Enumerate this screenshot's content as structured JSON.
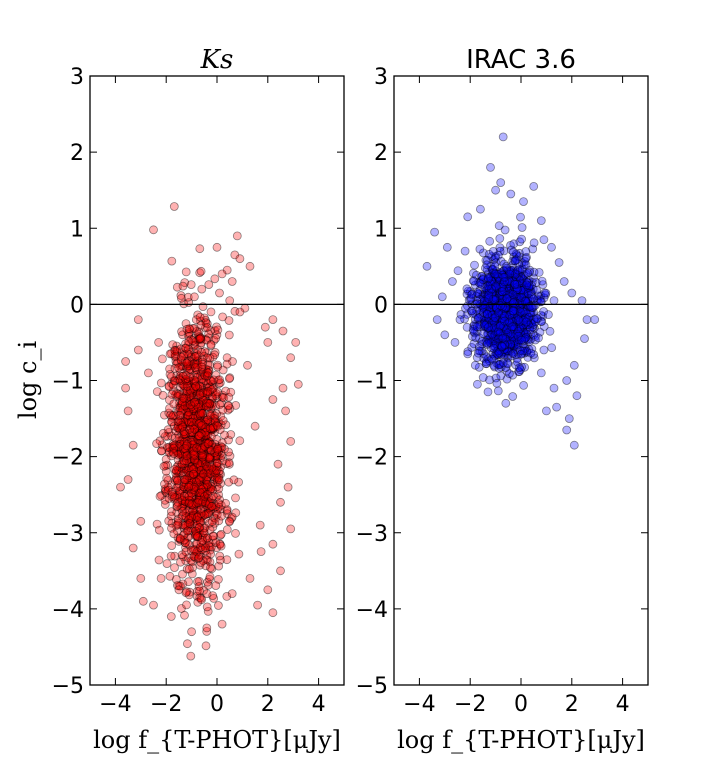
{
  "chart_data": [
    {
      "type": "scatter",
      "title": "Ks",
      "title_style": "italic",
      "xlabel": "log f_{T-PHOT}[μJy]",
      "ylabel": "log c_i",
      "xlim": [
        -5,
        5
      ],
      "ylim": [
        -5,
        3
      ],
      "xticks": [
        -4,
        -2,
        0,
        2,
        4
      ],
      "yticks": [
        -5,
        -4,
        -3,
        -2,
        -1,
        0,
        1,
        2,
        3
      ],
      "xtick_labels": [
        "−4",
        "−2",
        "0",
        "2",
        "4"
      ],
      "ytick_labels": [
        "−5",
        "−4",
        "−3",
        "−2",
        "−1",
        "0",
        "1",
        "2",
        "3"
      ],
      "reference_line_y": 0,
      "grid": false,
      "marker_color": "#ff0000",
      "marker_alpha": 0.3,
      "cloud": {
        "n": 1500,
        "x_center": -0.8,
        "x_sd": 0.55,
        "y_center": -1.9,
        "y_sd": 0.85,
        "seed": 11
      },
      "points": [
        [
          0.0,
          0.75
        ],
        [
          0.8,
          0.9
        ],
        [
          0.7,
          0.65
        ],
        [
          0.9,
          0.6
        ],
        [
          1.3,
          0.5
        ],
        [
          0.4,
          0.45
        ],
        [
          0.2,
          0.4
        ],
        [
          0.6,
          0.3
        ],
        [
          -0.6,
          0.2
        ],
        [
          -1.4,
          0.08
        ],
        [
          0.1,
          0.15
        ],
        [
          0.5,
          0.05
        ],
        [
          1.1,
          -0.05
        ],
        [
          2.2,
          -0.2
        ],
        [
          2.6,
          -0.35
        ],
        [
          1.9,
          -0.3
        ],
        [
          2.0,
          -0.5
        ],
        [
          2.9,
          -0.7
        ],
        [
          3.1,
          -0.5
        ],
        [
          3.2,
          -1.05
        ],
        [
          2.6,
          -1.1
        ],
        [
          2.2,
          -1.25
        ],
        [
          2.7,
          -1.4
        ],
        [
          2.9,
          -1.8
        ],
        [
          2.4,
          -2.1
        ],
        [
          2.8,
          -2.4
        ],
        [
          2.5,
          -2.6
        ],
        [
          2.9,
          -2.95
        ],
        [
          2.2,
          -3.15
        ],
        [
          2.5,
          -3.5
        ],
        [
          2.0,
          -3.75
        ],
        [
          2.2,
          -4.05
        ],
        [
          1.3,
          -3.6
        ],
        [
          1.6,
          -3.95
        ],
        [
          0.2,
          -4.2
        ],
        [
          -0.4,
          -4.25
        ],
        [
          -1.0,
          -4.3
        ],
        [
          -1.8,
          -4.1
        ],
        [
          -2.5,
          -3.95
        ],
        [
          -3.0,
          -3.6
        ],
        [
          -3.5,
          -2.3
        ],
        [
          -3.8,
          -2.4
        ],
        [
          -3.3,
          -1.85
        ],
        [
          -3.5,
          -1.4
        ],
        [
          -3.6,
          -1.1
        ],
        [
          -3.6,
          -0.75
        ],
        [
          -3.1,
          -0.6
        ],
        [
          -3.1,
          -0.2
        ],
        [
          -2.7,
          -0.9
        ],
        [
          -2.3,
          -0.5
        ],
        [
          -3.0,
          -2.85
        ],
        [
          -3.3,
          -3.2
        ],
        [
          -2.2,
          -3.6
        ],
        [
          -2.9,
          -3.9
        ],
        [
          -1.5,
          -3.75
        ],
        [
          0.6,
          -3.8
        ],
        [
          1.7,
          -2.9
        ],
        [
          1.5,
          -1.6
        ],
        [
          1.2,
          -0.8
        ],
        [
          0.9,
          -0.1
        ]
      ]
    },
    {
      "type": "scatter",
      "title": "IRAC 3.6",
      "title_style": "normal",
      "xlabel": "log f_{T-PHOT}[μJy]",
      "ylabel": "",
      "xlim": [
        -5,
        5
      ],
      "ylim": [
        -5,
        3
      ],
      "xticks": [
        -4,
        -2,
        0,
        2,
        4
      ],
      "yticks": [
        -5,
        -4,
        -3,
        -2,
        -1,
        0,
        1,
        2,
        3
      ],
      "xtick_labels": [
        "−4",
        "−2",
        "0",
        "2",
        "4"
      ],
      "ytick_labels": [
        "−5",
        "−4",
        "−3",
        "−2",
        "−1",
        "0",
        "1",
        "2",
        "3"
      ],
      "reference_line_y": 0,
      "grid": false,
      "marker_color": "#0000ff",
      "marker_alpha": 0.3,
      "cloud": {
        "n": 1300,
        "x_center": -0.6,
        "x_sd": 0.6,
        "y_center": -0.1,
        "y_sd": 0.35,
        "seed": 23
      },
      "points": [
        [
          -0.7,
          2.2
        ],
        [
          -1.2,
          1.8
        ],
        [
          -0.8,
          1.6
        ],
        [
          -0.4,
          1.45
        ],
        [
          0.5,
          1.55
        ],
        [
          -1.0,
          1.5
        ],
        [
          0.1,
          1.35
        ],
        [
          -1.6,
          1.25
        ],
        [
          -2.1,
          1.15
        ],
        [
          0.8,
          1.1
        ],
        [
          -3.4,
          0.95
        ],
        [
          -3.7,
          0.5
        ],
        [
          -2.9,
          0.75
        ],
        [
          0.9,
          0.85
        ],
        [
          1.2,
          0.75
        ],
        [
          1.5,
          0.55
        ],
        [
          -2.2,
          0.7
        ],
        [
          1.7,
          0.3
        ],
        [
          2.0,
          0.15
        ],
        [
          2.4,
          0.05
        ],
        [
          2.6,
          -0.2
        ],
        [
          2.9,
          -0.2
        ],
        [
          2.5,
          -0.45
        ],
        [
          2.1,
          -0.8
        ],
        [
          1.8,
          -1.0
        ],
        [
          2.2,
          -1.2
        ],
        [
          1.4,
          -1.35
        ],
        [
          1.9,
          -1.5
        ],
        [
          1.8,
          -1.65
        ],
        [
          2.1,
          -1.85
        ],
        [
          1.0,
          -1.4
        ],
        [
          1.3,
          -1.1
        ],
        [
          0.8,
          -0.9
        ],
        [
          -1.3,
          -1.15
        ],
        [
          -0.6,
          -1.3
        ],
        [
          -3.3,
          -0.2
        ],
        [
          -3.0,
          -0.4
        ],
        [
          -2.6,
          -0.5
        ],
        [
          -2.4,
          -0.2
        ],
        [
          -3.1,
          0.1
        ],
        [
          -2.7,
          0.3
        ],
        [
          1.3,
          0.05
        ],
        [
          0.9,
          -0.6
        ],
        [
          -1.8,
          -0.8
        ],
        [
          -2.1,
          -0.65
        ]
      ]
    }
  ]
}
